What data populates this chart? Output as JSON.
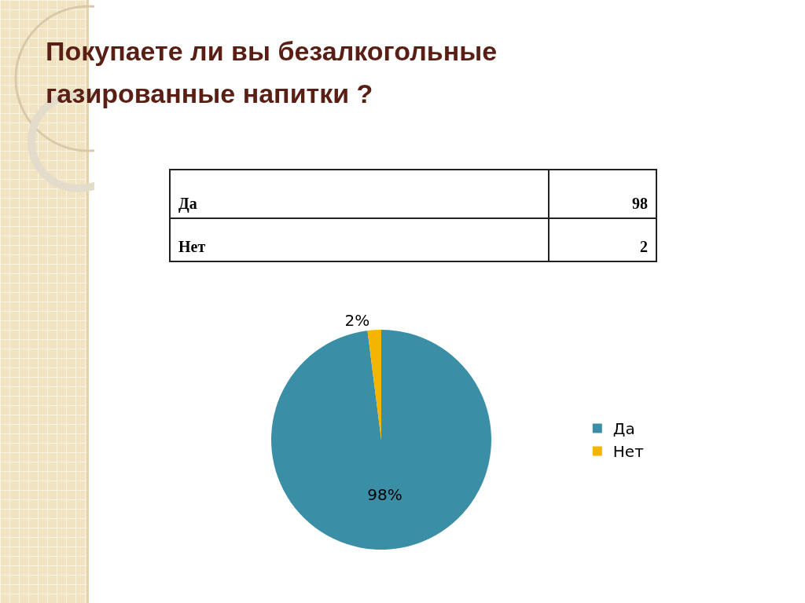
{
  "chart_data": [
    {
      "type": "other",
      "title": "Покупаете ли вы безалкогольные газированные напитки ?",
      "categories": [
        "Да",
        "Нет"
      ],
      "values": [
        98,
        2
      ],
      "data_labels": true
    },
    {
      "type": "pie",
      "categories": [
        "Да",
        "Нет"
      ],
      "values": [
        98,
        2
      ],
      "colors": [
        "#3a8fa6",
        "#f5b400"
      ],
      "value_labels": [
        "98%",
        "2%"
      ],
      "legend": "right"
    }
  ]
}
